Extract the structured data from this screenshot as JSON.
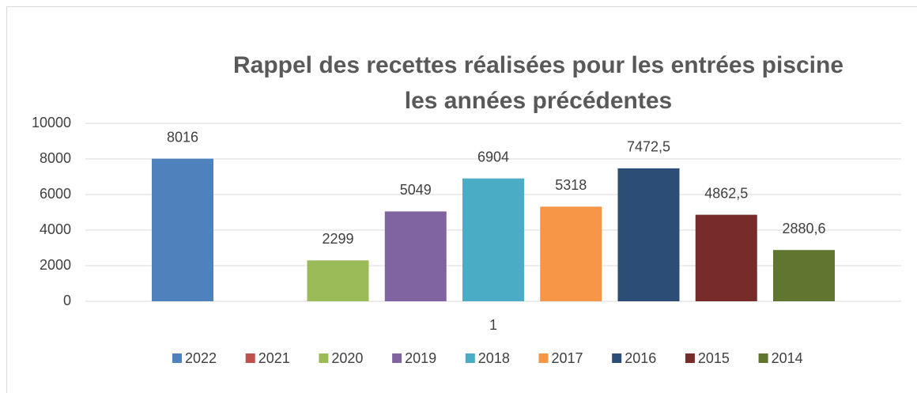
{
  "chart_data": {
    "type": "bar",
    "title": [
      "Rappel des recettes réalisées pour les entrées piscine",
      "les années précédentes"
    ],
    "categories": [
      "1"
    ],
    "series": [
      {
        "name": "2022",
        "color": "#4f81bd",
        "values": [
          8016
        ],
        "value_labels": [
          "8016"
        ]
      },
      {
        "name": "2021",
        "color": "#c0504d",
        "values": [
          null
        ]
      },
      {
        "name": "2020",
        "color": "#9bbb59",
        "values": [
          2299
        ],
        "value_labels": [
          "2299"
        ]
      },
      {
        "name": "2019",
        "color": "#8064a2",
        "values": [
          5049
        ],
        "value_labels": [
          "5049"
        ]
      },
      {
        "name": "2018",
        "color": "#4bacc6",
        "values": [
          6904
        ],
        "value_labels": [
          "6904"
        ]
      },
      {
        "name": "2017",
        "color": "#f79646",
        "values": [
          5318
        ],
        "value_labels": [
          "5318"
        ]
      },
      {
        "name": "2016",
        "color": "#2c4d75",
        "values": [
          7472.5
        ],
        "value_labels": [
          "7472,5"
        ]
      },
      {
        "name": "2015",
        "color": "#772c2a",
        "values": [
          4862.5
        ],
        "value_labels": [
          "4862,5"
        ]
      },
      {
        "name": "2014",
        "color": "#5f7530",
        "values": [
          2880.6
        ],
        "value_labels": [
          "2880,6"
        ]
      }
    ],
    "ylim": [
      0,
      10000
    ],
    "yticks": [
      0,
      2000,
      4000,
      6000,
      8000,
      10000
    ],
    "grid": true,
    "legend": "bottom"
  }
}
